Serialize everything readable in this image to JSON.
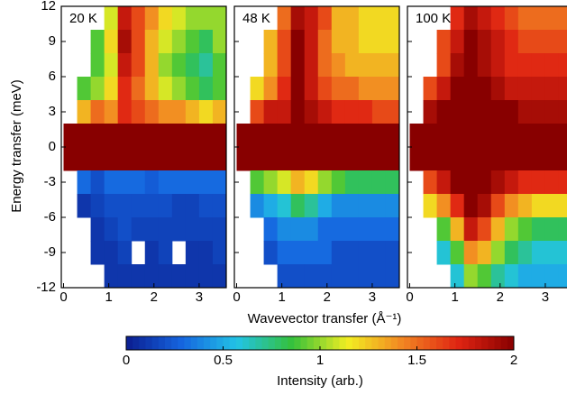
{
  "chart_data": {
    "type": "heatmap",
    "x_label": "Wavevector transfer (Å⁻¹)",
    "y_label": "Energy transfer (meV)",
    "xlim": [
      -0.05,
      3.6
    ],
    "xticks": [
      0,
      1,
      2,
      3
    ],
    "ylim": [
      -12,
      12
    ],
    "yticks": [
      -12,
      -9,
      -6,
      -3,
      0,
      3,
      6,
      9,
      12
    ],
    "x": [
      0.15,
      0.45,
      0.75,
      1.05,
      1.35,
      1.65,
      1.95,
      2.25,
      2.55,
      2.85,
      3.15,
      3.45
    ],
    "y": [
      11,
      9,
      7,
      5,
      3,
      1,
      -1,
      -3,
      -5,
      -7,
      -9,
      -11
    ],
    "colorbar": {
      "label": "Intensity (arb.)",
      "lim": [
        0,
        2
      ],
      "ticks": [
        0,
        0.5,
        1,
        1.5,
        2
      ],
      "colors": [
        "#0b1d8f",
        "#1565e0",
        "#22c3e6",
        "#35c13a",
        "#f2ee22",
        "#f28422",
        "#df2412",
        "#880000"
      ]
    },
    "panels": [
      {
        "label": "20 K",
        "values": [
          [
            null,
            null,
            null,
            1.1,
            1.8,
            1.6,
            1.4,
            1.2,
            1.1,
            1.0,
            1.0,
            1.0
          ],
          [
            null,
            null,
            0.9,
            1.2,
            1.9,
            1.6,
            1.3,
            1.1,
            1.0,
            0.9,
            0.8,
            1.0
          ],
          [
            null,
            null,
            0.9,
            1.1,
            1.8,
            1.6,
            1.3,
            1.0,
            0.9,
            0.8,
            0.7,
            0.9
          ],
          [
            null,
            0.9,
            1.0,
            1.2,
            1.7,
            1.5,
            1.3,
            1.1,
            1.0,
            0.9,
            0.8,
            0.9
          ],
          [
            null,
            1.3,
            1.5,
            1.4,
            1.7,
            1.6,
            1.5,
            1.4,
            1.4,
            1.3,
            1.2,
            1.3
          ],
          [
            2,
            2,
            2,
            2,
            2,
            2,
            2,
            2,
            2,
            2,
            2,
            2
          ],
          [
            2,
            2,
            2,
            2,
            2,
            2,
            2,
            2,
            2,
            2,
            2,
            2
          ],
          [
            null,
            0.3,
            0.2,
            0.3,
            0.3,
            0.3,
            0.25,
            0.3,
            0.3,
            0.3,
            0.3,
            0.3
          ],
          [
            null,
            0.1,
            0.15,
            0.2,
            0.2,
            0.2,
            0.2,
            0.2,
            0.15,
            0.15,
            0.2,
            0.2
          ],
          [
            null,
            null,
            0.1,
            0.15,
            0.2,
            0.15,
            0.15,
            0.15,
            0.15,
            0.15,
            0.15,
            0.15
          ],
          [
            null,
            null,
            0.1,
            0.1,
            0.15,
            null,
            0.1,
            0.15,
            null,
            0.1,
            0.1,
            0.15
          ],
          [
            null,
            null,
            null,
            0.1,
            0.1,
            0.1,
            0.1,
            0.1,
            0.1,
            0.1,
            0.1,
            0.1
          ]
        ]
      },
      {
        "label": "48 K",
        "values": [
          [
            null,
            null,
            null,
            1.5,
            1.9,
            1.8,
            1.6,
            1.3,
            1.3,
            1.2,
            1.2,
            1.2
          ],
          [
            null,
            null,
            1.3,
            1.6,
            2,
            1.8,
            1.5,
            1.3,
            1.3,
            1.2,
            1.2,
            1.2
          ],
          [
            null,
            null,
            1.3,
            1.6,
            2,
            1.8,
            1.5,
            1.4,
            1.3,
            1.3,
            1.3,
            1.3
          ],
          [
            null,
            1.2,
            1.4,
            1.7,
            2,
            1.8,
            1.6,
            1.5,
            1.5,
            1.4,
            1.4,
            1.4
          ],
          [
            null,
            1.6,
            1.8,
            1.8,
            2,
            1.9,
            1.8,
            1.7,
            1.7,
            1.7,
            1.6,
            1.6
          ],
          [
            2,
            2,
            2,
            2,
            2,
            2,
            2,
            2,
            2,
            2,
            2,
            2
          ],
          [
            2,
            2,
            2,
            2,
            2,
            2,
            2,
            2,
            2,
            2,
            2,
            2
          ],
          [
            null,
            0.9,
            1.0,
            1.1,
            1.3,
            1.2,
            1.0,
            0.9,
            0.8,
            0.8,
            0.8,
            0.8
          ],
          [
            null,
            0.4,
            0.5,
            0.6,
            0.8,
            0.7,
            0.5,
            0.4,
            0.4,
            0.4,
            0.4,
            0.4
          ],
          [
            null,
            null,
            0.3,
            0.4,
            0.4,
            0.4,
            0.3,
            0.3,
            0.3,
            0.3,
            0.3,
            0.3
          ],
          [
            null,
            null,
            0.2,
            0.3,
            0.3,
            0.3,
            0.3,
            0.2,
            0.2,
            0.2,
            0.2,
            0.2
          ],
          [
            null,
            null,
            null,
            0.2,
            0.2,
            0.2,
            0.2,
            0.2,
            0.2,
            0.2,
            0.2,
            0.2
          ]
        ]
      },
      {
        "label": "100 K",
        "values": [
          [
            null,
            null,
            null,
            1.7,
            1.9,
            1.8,
            1.7,
            1.6,
            1.5,
            1.5,
            1.5,
            1.5
          ],
          [
            null,
            null,
            1.6,
            1.8,
            2,
            1.9,
            1.8,
            1.7,
            1.6,
            1.6,
            1.6,
            1.6
          ],
          [
            null,
            null,
            1.6,
            1.9,
            2,
            1.9,
            1.8,
            1.7,
            1.7,
            1.7,
            1.7,
            1.7
          ],
          [
            null,
            1.6,
            1.8,
            2,
            2,
            2,
            1.9,
            1.8,
            1.8,
            1.8,
            1.8,
            1.8
          ],
          [
            null,
            1.9,
            2,
            2,
            2,
            2,
            2,
            2,
            1.9,
            1.9,
            1.9,
            1.9
          ],
          [
            2,
            2,
            2,
            2,
            2,
            2,
            2,
            2,
            2,
            2,
            2,
            2
          ],
          [
            2,
            2,
            2,
            2,
            2,
            2,
            2,
            2,
            2,
            2,
            2,
            2
          ],
          [
            null,
            1.6,
            1.8,
            2,
            2,
            2,
            1.9,
            1.8,
            1.7,
            1.7,
            1.7,
            1.7
          ],
          [
            null,
            1.2,
            1.4,
            1.7,
            2,
            1.9,
            1.6,
            1.4,
            1.3,
            1.2,
            1.2,
            1.2
          ],
          [
            null,
            null,
            0.9,
            1.3,
            1.8,
            1.6,
            1.3,
            1.0,
            0.9,
            0.8,
            0.8,
            0.8
          ],
          [
            null,
            null,
            0.6,
            0.9,
            1.4,
            1.3,
            1.0,
            0.8,
            0.7,
            0.6,
            0.6,
            0.6
          ],
          [
            null,
            null,
            null,
            0.6,
            1.0,
            0.9,
            0.7,
            0.6,
            0.5,
            0.5,
            0.5,
            0.5
          ]
        ]
      }
    ]
  }
}
